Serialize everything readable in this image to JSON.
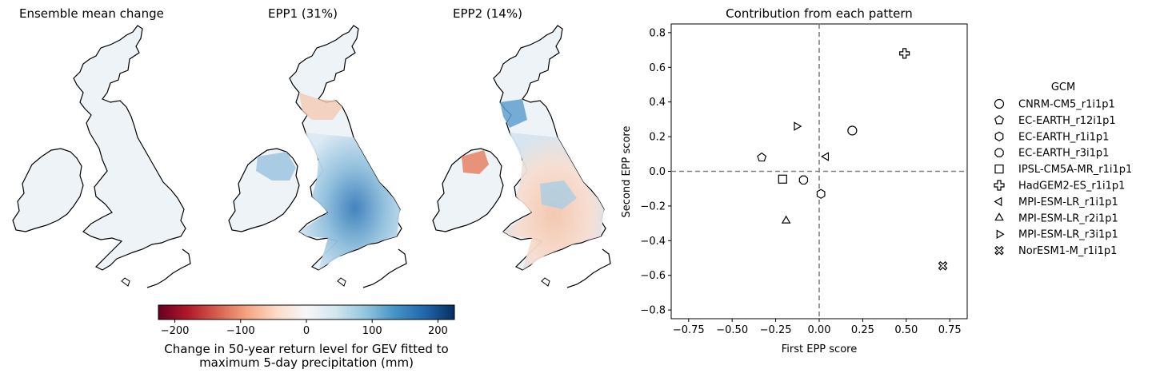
{
  "maps": {
    "titles": [
      "Ensemble mean change",
      "EPP1 (31%)",
      "EPP2 (14%)"
    ]
  },
  "colorbar": {
    "ticks": [
      -200,
      -100,
      0,
      100,
      200
    ],
    "tick_labels": [
      "−200",
      "−100",
      "0",
      "100",
      "200"
    ],
    "range": [
      -225,
      225
    ],
    "colormap": "RdBu",
    "label_line1": "Change in 50-year return level for GEV fitted to",
    "label_line2": "maximum 5-day precipitation (mm)"
  },
  "chart_data": {
    "type": "scatter",
    "title": "Contribution from each pattern",
    "xlabel": "First EPP score",
    "ylabel": "Second EPP score",
    "xlim": [
      -0.85,
      0.85
    ],
    "ylim": [
      -0.85,
      0.85
    ],
    "xticks": [
      -0.75,
      -0.5,
      -0.25,
      0.0,
      0.25,
      0.5,
      0.75
    ],
    "xtick_labels": [
      "−0.75",
      "−0.50",
      "−0.25",
      "0.00",
      "0.25",
      "0.50",
      "0.75"
    ],
    "yticks": [
      -0.8,
      -0.6,
      -0.4,
      -0.2,
      0.0,
      0.2,
      0.4,
      0.6,
      0.8
    ],
    "ytick_labels": [
      "−0.8",
      "−0.6",
      "−0.4",
      "−0.2",
      "0.0",
      "0.2",
      "0.4",
      "0.6",
      "0.8"
    ],
    "reference_lines": {
      "x": 0,
      "y": 0,
      "style": "dashed",
      "color": "#808080"
    },
    "legend": {
      "title": "GCM",
      "placement": "right outside"
    },
    "points": [
      {
        "name": "CNRM-CM5_r1i1p1",
        "marker": "circle",
        "x": 0.19,
        "y": 0.235
      },
      {
        "name": "EC-EARTH_r12i1p1",
        "marker": "pentagon",
        "x": -0.33,
        "y": 0.08
      },
      {
        "name": "EC-EARTH_r1i1p1",
        "marker": "hexagon",
        "x": 0.01,
        "y": -0.13
      },
      {
        "name": "EC-EARTH_r3i1p1",
        "marker": "octagon",
        "x": -0.09,
        "y": -0.05
      },
      {
        "name": "IPSL-CM5A-MR_r1i1p1",
        "marker": "square",
        "x": -0.21,
        "y": -0.045
      },
      {
        "name": "HadGEM2-ES_r1i1p1",
        "marker": "plus",
        "x": 0.49,
        "y": 0.68
      },
      {
        "name": "MPI-ESM-LR_r1i1p1",
        "marker": "triangle-left",
        "x": 0.04,
        "y": 0.085
      },
      {
        "name": "MPI-ESM-LR_r2i1p1",
        "marker": "triangle-up",
        "x": -0.19,
        "y": -0.285
      },
      {
        "name": "MPI-ESM-LR_r3i1p1",
        "marker": "triangle-right",
        "x": -0.13,
        "y": 0.26
      },
      {
        "name": "NorESM1-M_r1i1p1",
        "marker": "x-filled",
        "x": 0.71,
        "y": -0.545
      }
    ]
  }
}
